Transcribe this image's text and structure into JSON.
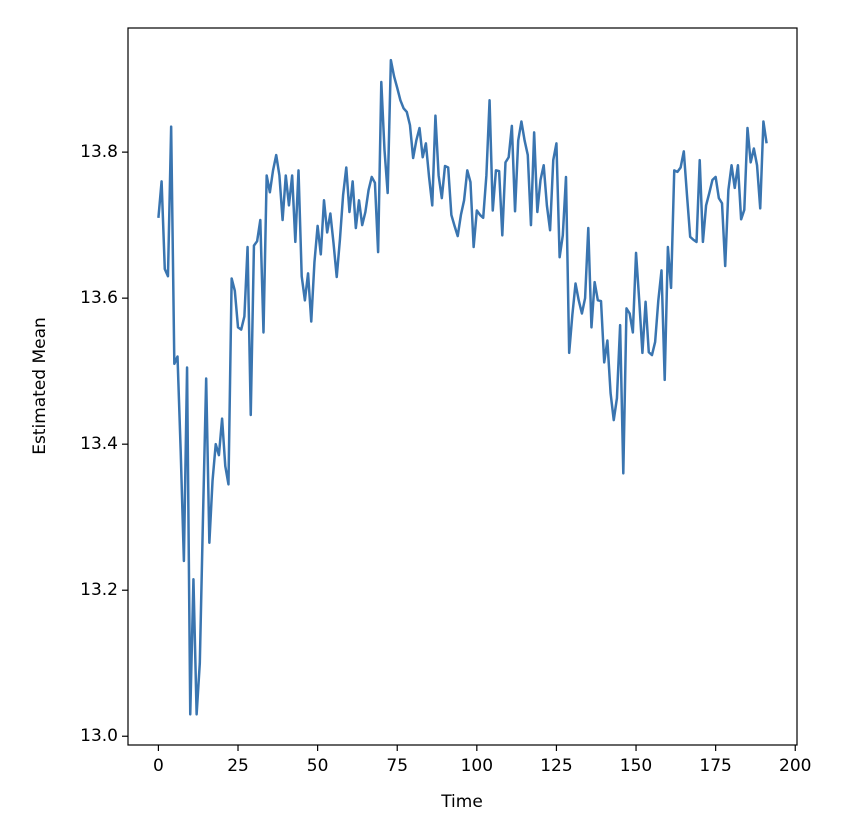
{
  "chart_data": {
    "type": "line",
    "x_label": "Time",
    "y_label": "Estimated Mean",
    "x": [
      0,
      1,
      2,
      3,
      4,
      5,
      6,
      7,
      8,
      9,
      10,
      11,
      12,
      13,
      14,
      15,
      16,
      17,
      18,
      19,
      20,
      21,
      22,
      23,
      24,
      25,
      26,
      27,
      28,
      29,
      30,
      31,
      32,
      33,
      34,
      35,
      36,
      37,
      38,
      39,
      40,
      41,
      42,
      43,
      44,
      45,
      46,
      47,
      48,
      49,
      50,
      51,
      52,
      53,
      54,
      55,
      56,
      57,
      58,
      59,
      60,
      61,
      62,
      63,
      64,
      65,
      66,
      67,
      68,
      69,
      70,
      71,
      72,
      73,
      74,
      75,
      76,
      77,
      78,
      79,
      80,
      81,
      82,
      83,
      84,
      85,
      86,
      87,
      88,
      89,
      90,
      91,
      92,
      93,
      94,
      95,
      96,
      97,
      98,
      99,
      100,
      101,
      102,
      103,
      104,
      105,
      106,
      107,
      108,
      109,
      110,
      111,
      112,
      113,
      114,
      115,
      116,
      117,
      118,
      119,
      120,
      121,
      122,
      123,
      124,
      125,
      126,
      127,
      128,
      129,
      130,
      131,
      132,
      133,
      134,
      135,
      136,
      137,
      138,
      139,
      140,
      141,
      142,
      143,
      144,
      145,
      146,
      147,
      148,
      149,
      150,
      151,
      152,
      153,
      154,
      155,
      156,
      157,
      158,
      159,
      160,
      161,
      162,
      163,
      164,
      165,
      166,
      167,
      168,
      169,
      170,
      171,
      172,
      173,
      174,
      175,
      176,
      177,
      178,
      179,
      180,
      181,
      182,
      183,
      184,
      185,
      186,
      187,
      188,
      189,
      190,
      191
    ],
    "series": [
      {
        "color": "#3a75b0",
        "values": [
          13.71,
          13.76,
          13.64,
          13.63,
          13.835,
          13.51,
          13.52,
          13.39,
          13.24,
          13.505,
          13.03,
          13.215,
          13.03,
          13.1,
          13.3,
          13.49,
          13.265,
          13.35,
          13.4,
          13.385,
          13.435,
          13.37,
          13.345,
          13.627,
          13.61,
          13.56,
          13.557,
          13.575,
          13.67,
          13.44,
          13.672,
          13.678,
          13.707,
          13.553,
          13.768,
          13.745,
          13.775,
          13.796,
          13.768,
          13.707,
          13.768,
          13.727,
          13.768,
          13.677,
          13.775,
          13.63,
          13.597,
          13.634,
          13.568,
          13.649,
          13.699,
          13.66,
          13.734,
          13.69,
          13.716,
          13.675,
          13.629,
          13.68,
          13.741,
          13.779,
          13.718,
          13.76,
          13.696,
          13.734,
          13.7,
          13.718,
          13.748,
          13.766,
          13.758,
          13.663,
          13.896,
          13.803,
          13.744,
          13.926,
          13.904,
          13.888,
          13.871,
          13.86,
          13.855,
          13.837,
          13.792,
          13.816,
          13.833,
          13.793,
          13.812,
          13.766,
          13.727,
          13.85,
          13.768,
          13.737,
          13.781,
          13.779,
          13.714,
          13.699,
          13.685,
          13.714,
          13.734,
          13.775,
          13.759,
          13.67,
          13.72,
          13.714,
          13.71,
          13.768,
          13.871,
          13.72,
          13.775,
          13.774,
          13.686,
          13.786,
          13.793,
          13.836,
          13.719,
          13.816,
          13.842,
          13.816,
          13.796,
          13.7,
          13.827,
          13.718,
          13.762,
          13.782,
          13.727,
          13.693,
          13.789,
          13.812,
          13.656,
          13.686,
          13.766,
          13.525,
          13.577,
          13.62,
          13.597,
          13.579,
          13.6,
          13.696,
          13.56,
          13.622,
          13.597,
          13.596,
          13.512,
          13.542,
          13.47,
          13.433,
          13.463,
          13.563,
          13.36,
          13.586,
          13.579,
          13.553,
          13.662,
          13.597,
          13.525,
          13.595,
          13.526,
          13.522,
          13.54,
          13.597,
          13.638,
          13.488,
          13.67,
          13.614,
          13.775,
          13.773,
          13.779,
          13.801,
          13.741,
          13.684,
          13.68,
          13.677,
          13.789,
          13.677,
          13.727,
          13.744,
          13.762,
          13.766,
          13.737,
          13.73,
          13.644,
          13.748,
          13.782,
          13.751,
          13.782,
          13.708,
          13.721,
          13.833,
          13.786,
          13.805,
          13.782,
          13.723,
          13.842,
          13.812
        ]
      }
    ],
    "xlim": [
      -9.55,
      200.55
    ],
    "xticks": [
      0,
      25,
      50,
      75,
      100,
      125,
      150,
      175,
      200
    ],
    "ylim": [
      12.988,
      13.97
    ],
    "yticks": [
      {
        "value": 13.0,
        "label": "13.0"
      },
      13.2,
      13.4,
      13.6,
      13.8
    ]
  }
}
